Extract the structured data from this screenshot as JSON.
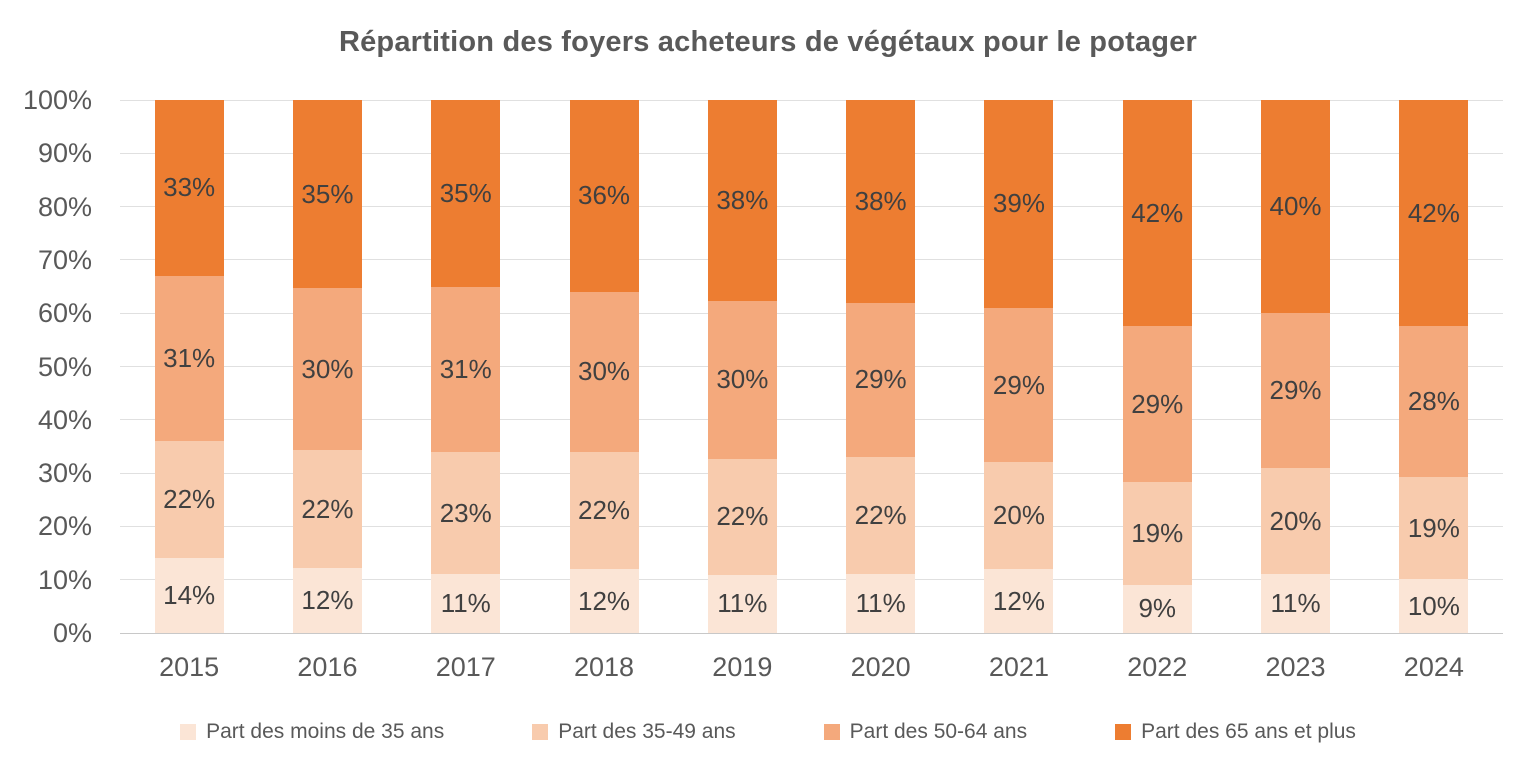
{
  "chart_data": {
    "type": "bar",
    "stacked": true,
    "percent_stacked": true,
    "title": "Répartition des foyers acheteurs de végétaux pour le potager",
    "categories": [
      "2015",
      "2016",
      "2017",
      "2018",
      "2019",
      "2020",
      "2021",
      "2022",
      "2023",
      "2024"
    ],
    "series": [
      {
        "name": "Part des moins de 35 ans",
        "color": "#FBE5D6",
        "values": [
          14,
          12,
          11,
          12,
          11,
          11,
          12,
          9,
          11,
          10
        ]
      },
      {
        "name": "Part des 35-49 ans",
        "color": "#F8CBAD",
        "values": [
          22,
          22,
          23,
          22,
          22,
          22,
          20,
          19,
          20,
          19
        ]
      },
      {
        "name": "Part des 50-64 ans",
        "color": "#F4A97C",
        "values": [
          31,
          30,
          31,
          30,
          30,
          29,
          29,
          29,
          29,
          28
        ]
      },
      {
        "name": "Part des 65 ans et plus",
        "color": "#ED7D31",
        "values": [
          33,
          35,
          35,
          36,
          38,
          38,
          39,
          42,
          40,
          42
        ]
      }
    ],
    "data_label_suffix": "%",
    "y_axis": {
      "min": 0,
      "max": 100,
      "tick_step": 10,
      "tick_labels": [
        "0%",
        "10%",
        "20%",
        "30%",
        "40%",
        "50%",
        "60%",
        "70%",
        "80%",
        "90%",
        "100%"
      ],
      "grid": true
    },
    "legend_position": "bottom"
  },
  "colors": {
    "title": "#595959",
    "axis_label": "#595959",
    "data_label": "#404040",
    "gridline": "#E0E0E0",
    "baseline": "#C8C8C8",
    "background": "#FFFFFF"
  }
}
